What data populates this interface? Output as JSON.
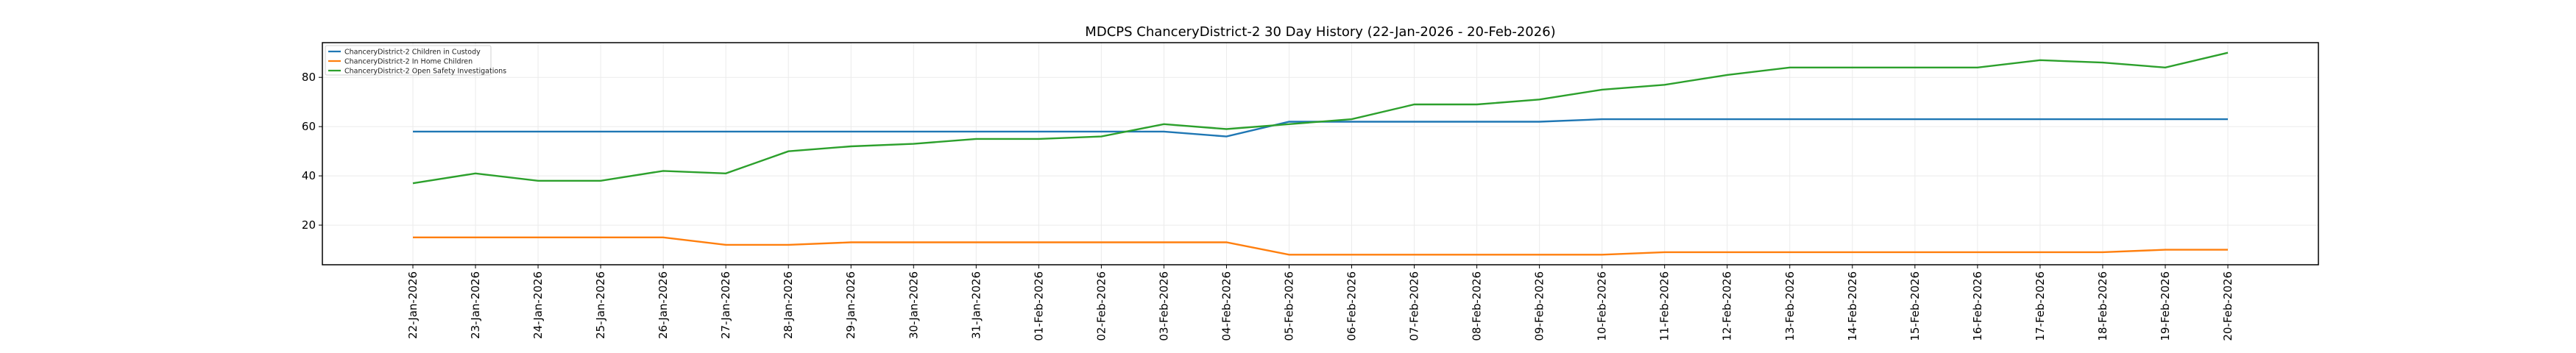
{
  "chart_data": {
    "type": "line",
    "title": "MDCPS ChanceryDistrict-2 30 Day History (22-Jan-2026 - 20-Feb-2026)",
    "xlabel": "",
    "ylabel": "",
    "ylim": [
      3.9,
      94.1
    ],
    "yticks": [
      20,
      40,
      60,
      80
    ],
    "grid": true,
    "legend_position": "top-left",
    "categories": [
      "22-Jan-2026",
      "23-Jan-2026",
      "24-Jan-2026",
      "25-Jan-2026",
      "26-Jan-2026",
      "27-Jan-2026",
      "28-Jan-2026",
      "29-Jan-2026",
      "30-Jan-2026",
      "31-Jan-2026",
      "01-Feb-2026",
      "02-Feb-2026",
      "03-Feb-2026",
      "04-Feb-2026",
      "05-Feb-2026",
      "06-Feb-2026",
      "07-Feb-2026",
      "08-Feb-2026",
      "09-Feb-2026",
      "10-Feb-2026",
      "11-Feb-2026",
      "12-Feb-2026",
      "13-Feb-2026",
      "14-Feb-2026",
      "15-Feb-2026",
      "16-Feb-2026",
      "17-Feb-2026",
      "18-Feb-2026",
      "19-Feb-2026",
      "20-Feb-2026"
    ],
    "series": [
      {
        "name": "ChanceryDistrict-2 Children in Custody",
        "color": "#1f77b4",
        "values": [
          58,
          58,
          58,
          58,
          58,
          58,
          58,
          58,
          58,
          58,
          58,
          58,
          58,
          56,
          62,
          62,
          62,
          62,
          62,
          63,
          63,
          63,
          63,
          63,
          63,
          63,
          63,
          63,
          63,
          63
        ]
      },
      {
        "name": "ChanceryDistrict-2 In Home Children",
        "color": "#ff7f0e",
        "values": [
          15,
          15,
          15,
          15,
          15,
          12,
          12,
          13,
          13,
          13,
          13,
          13,
          13,
          13,
          8,
          8,
          8,
          8,
          8,
          8,
          9,
          9,
          9,
          9,
          9,
          9,
          9,
          9,
          10,
          10
        ]
      },
      {
        "name": "ChanceryDistrict-2 Open Safety Investigations",
        "color": "#2ca02c",
        "values": [
          37,
          41,
          38,
          38,
          42,
          41,
          50,
          52,
          53,
          55,
          55,
          56,
          61,
          59,
          61,
          63,
          69,
          69,
          71,
          75,
          77,
          81,
          84,
          84,
          84,
          84,
          87,
          86,
          84,
          90
        ]
      }
    ]
  }
}
